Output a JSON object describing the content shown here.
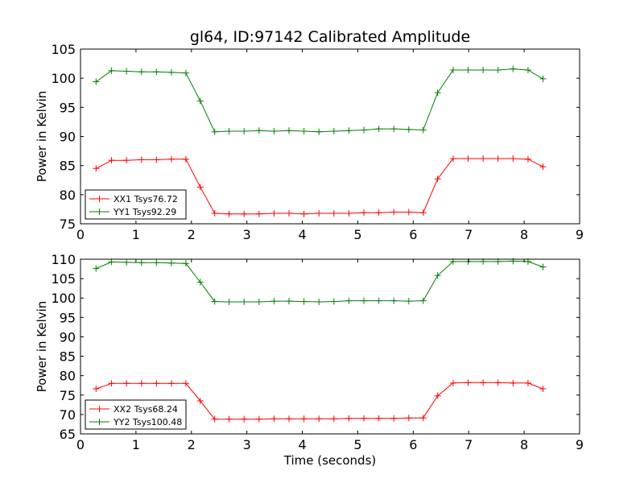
{
  "figure": {
    "title": "gl64, ID:97142 Calibrated Amplitude",
    "xlabel": "Time (seconds)"
  },
  "chart_data": [
    {
      "type": "line",
      "title": "gl64, ID:97142 Calibrated Amplitude",
      "xlabel": "",
      "ylabel": "Power in Kelvin",
      "xlim": [
        0,
        9
      ],
      "ylim": [
        75,
        105
      ],
      "xticks": [
        0,
        1,
        2,
        3,
        4,
        5,
        6,
        7,
        8,
        9
      ],
      "yticks": [
        75,
        80,
        85,
        90,
        95,
        100,
        105
      ],
      "grid": false,
      "legend": "lower-left",
      "x": [
        0.28,
        0.56,
        0.83,
        1.1,
        1.37,
        1.64,
        1.9,
        2.16,
        2.42,
        2.68,
        2.95,
        3.22,
        3.49,
        3.76,
        4.03,
        4.3,
        4.57,
        4.84,
        5.11,
        5.38,
        5.65,
        5.92,
        6.18,
        6.44,
        6.72,
        6.99,
        7.26,
        7.53,
        7.8,
        8.07,
        8.34
      ],
      "series": [
        {
          "name": "XX1 Tsys76.72",
          "color": "#ff0000",
          "values": [
            84.5,
            85.9,
            85.9,
            86.0,
            86.0,
            86.1,
            86.1,
            81.3,
            76.8,
            76.7,
            76.7,
            76.7,
            76.8,
            76.8,
            76.7,
            76.8,
            76.8,
            76.8,
            76.9,
            76.9,
            77.0,
            77.0,
            76.9,
            82.7,
            86.2,
            86.2,
            86.2,
            86.2,
            86.2,
            86.1,
            84.8
          ]
        },
        {
          "name": "YY1 Tsys92.29",
          "color": "#008000",
          "values": [
            99.4,
            101.3,
            101.2,
            101.1,
            101.1,
            101.0,
            100.9,
            96.1,
            90.8,
            90.9,
            90.9,
            91.0,
            90.9,
            91.0,
            90.9,
            90.8,
            90.9,
            91.0,
            91.1,
            91.3,
            91.3,
            91.2,
            91.1,
            97.5,
            101.4,
            101.4,
            101.4,
            101.4,
            101.6,
            101.4,
            99.9
          ]
        }
      ]
    },
    {
      "type": "line",
      "title": "",
      "xlabel": "Time (seconds)",
      "ylabel": "Power in Kelvin",
      "xlim": [
        0,
        9
      ],
      "ylim": [
        65,
        110
      ],
      "xticks": [
        0,
        1,
        2,
        3,
        4,
        5,
        6,
        7,
        8,
        9
      ],
      "yticks": [
        65,
        70,
        75,
        80,
        85,
        90,
        95,
        100,
        105,
        110
      ],
      "grid": false,
      "legend": "lower-left",
      "x": [
        0.28,
        0.56,
        0.83,
        1.1,
        1.37,
        1.64,
        1.9,
        2.16,
        2.42,
        2.68,
        2.95,
        3.22,
        3.49,
        3.76,
        4.03,
        4.3,
        4.57,
        4.84,
        5.11,
        5.38,
        5.65,
        5.92,
        6.18,
        6.44,
        6.72,
        6.99,
        7.26,
        7.53,
        7.8,
        8.07,
        8.34
      ],
      "series": [
        {
          "name": "XX2 Tsys68.24",
          "color": "#ff0000",
          "values": [
            76.6,
            78.0,
            78.0,
            78.0,
            78.0,
            78.0,
            78.0,
            73.5,
            68.8,
            68.8,
            68.8,
            68.8,
            68.9,
            68.9,
            68.9,
            68.9,
            68.9,
            69.0,
            69.0,
            69.0,
            69.0,
            69.1,
            69.1,
            74.8,
            78.1,
            78.2,
            78.2,
            78.2,
            78.1,
            78.1,
            76.6
          ]
        },
        {
          "name": "YY2 Tsys100.48",
          "color": "#008000",
          "values": [
            107.6,
            109.3,
            109.2,
            109.1,
            109.1,
            109.0,
            108.9,
            104.1,
            99.1,
            99.0,
            99.0,
            99.0,
            99.2,
            99.2,
            99.1,
            99.0,
            99.1,
            99.3,
            99.3,
            99.3,
            99.3,
            99.2,
            99.3,
            105.8,
            109.4,
            109.4,
            109.4,
            109.4,
            109.5,
            109.4,
            108.0
          ]
        }
      ]
    }
  ]
}
